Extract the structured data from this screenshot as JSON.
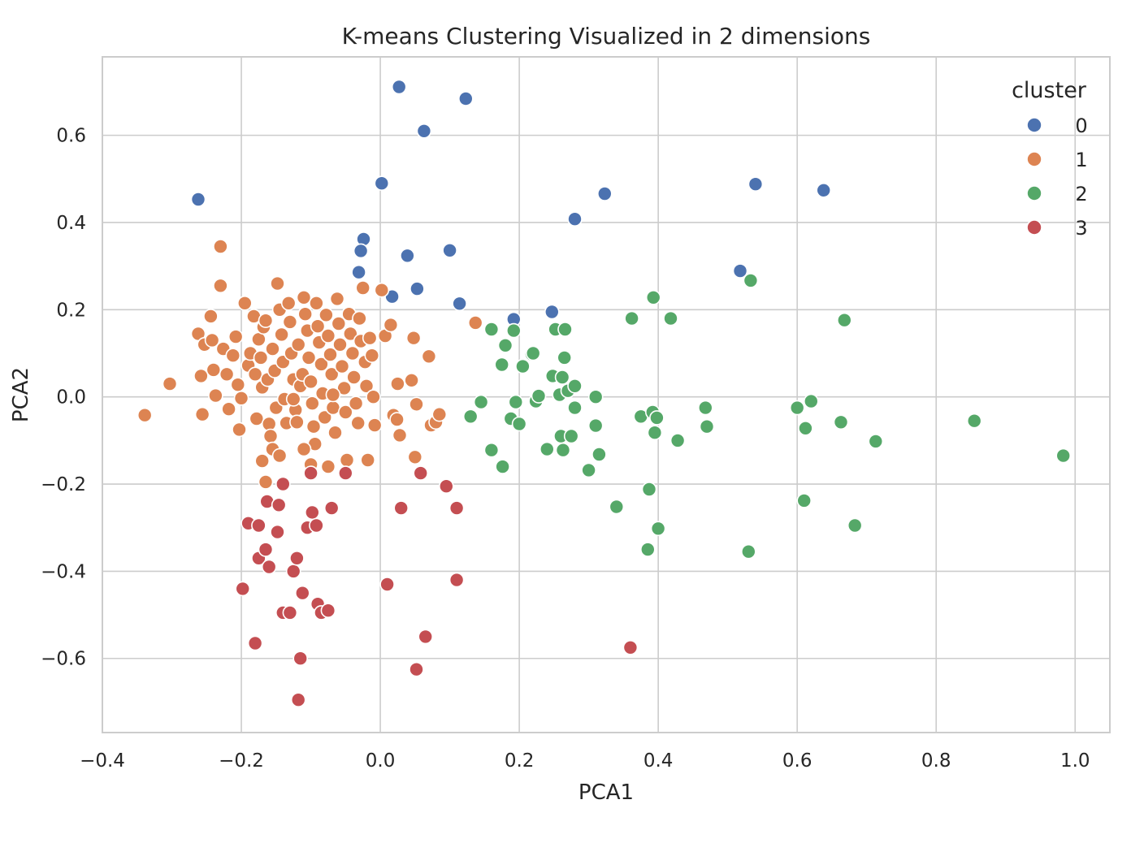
{
  "chart_data": {
    "type": "scatter",
    "title": "K-means Clustering Visualized in 2 dimensions",
    "xlabel": "PCA1",
    "ylabel": "PCA2",
    "xlim": [
      -0.4,
      1.05
    ],
    "ylim": [
      -0.77,
      0.78
    ],
    "xticks": [
      -0.4,
      -0.2,
      0.0,
      0.2,
      0.4,
      0.6,
      0.8,
      1.0
    ],
    "yticks": [
      -0.6,
      -0.4,
      -0.2,
      0.0,
      0.2,
      0.4,
      0.6
    ],
    "xtick_labels": [
      "−0.4",
      "−0.2",
      "0.0",
      "0.2",
      "0.4",
      "0.6",
      "0.8",
      "1.0"
    ],
    "ytick_labels": [
      "−0.6",
      "−0.4",
      "−0.2",
      "0.0",
      "0.2",
      "0.4",
      "0.6"
    ],
    "grid": true,
    "legend": {
      "title": "cluster",
      "placement": "top-right"
    },
    "series": [
      {
        "name": "0",
        "color": "#4c72b0",
        "points": [
          [
            -0.262,
            0.453
          ],
          [
            0.027,
            0.711
          ],
          [
            0.063,
            0.61
          ],
          [
            0.123,
            0.684
          ],
          [
            0.002,
            0.49
          ],
          [
            -0.024,
            0.362
          ],
          [
            -0.028,
            0.335
          ],
          [
            -0.031,
            0.286
          ],
          [
            0.039,
            0.324
          ],
          [
            0.053,
            0.248
          ],
          [
            0.017,
            0.23
          ],
          [
            0.1,
            0.336
          ],
          [
            0.114,
            0.214
          ],
          [
            0.192,
            0.178
          ],
          [
            0.247,
            0.195
          ],
          [
            0.28,
            0.408
          ],
          [
            0.323,
            0.466
          ],
          [
            0.518,
            0.289
          ],
          [
            0.54,
            0.488
          ],
          [
            0.638,
            0.474
          ]
        ]
      },
      {
        "name": "1",
        "color": "#dd8452",
        "points": [
          [
            -0.339,
            -0.042
          ],
          [
            -0.303,
            0.03
          ],
          [
            -0.262,
            0.145
          ],
          [
            -0.253,
            0.12
          ],
          [
            -0.258,
            0.048
          ],
          [
            -0.256,
            -0.04
          ],
          [
            -0.244,
            0.185
          ],
          [
            -0.242,
            0.13
          ],
          [
            -0.24,
            0.062
          ],
          [
            -0.237,
            0.003
          ],
          [
            -0.23,
            0.345
          ],
          [
            -0.23,
            0.255
          ],
          [
            -0.226,
            0.11
          ],
          [
            -0.221,
            0.052
          ],
          [
            -0.218,
            -0.028
          ],
          [
            -0.212,
            0.095
          ],
          [
            -0.208,
            0.138
          ],
          [
            -0.205,
            0.028
          ],
          [
            -0.203,
            -0.075
          ],
          [
            -0.2,
            -0.003
          ],
          [
            -0.195,
            0.215
          ],
          [
            -0.19,
            0.072
          ],
          [
            -0.187,
            0.1
          ],
          [
            -0.182,
            0.185
          ],
          [
            -0.18,
            0.052
          ],
          [
            -0.178,
            -0.05
          ],
          [
            -0.175,
            0.132
          ],
          [
            -0.172,
            0.09
          ],
          [
            -0.17,
            0.022
          ],
          [
            -0.168,
            0.16
          ],
          [
            -0.165,
            0.175
          ],
          [
            -0.162,
            0.04
          ],
          [
            -0.16,
            -0.062
          ],
          [
            -0.158,
            -0.09
          ],
          [
            -0.155,
            0.11
          ],
          [
            -0.152,
            0.06
          ],
          [
            -0.15,
            -0.025
          ],
          [
            -0.148,
            0.26
          ],
          [
            -0.145,
            0.2
          ],
          [
            -0.142,
            0.143
          ],
          [
            -0.14,
            0.08
          ],
          [
            -0.138,
            -0.005
          ],
          [
            -0.135,
            -0.06
          ],
          [
            -0.132,
            0.215
          ],
          [
            -0.13,
            0.172
          ],
          [
            -0.128,
            0.1
          ],
          [
            -0.125,
            0.04
          ],
          [
            -0.122,
            -0.03
          ],
          [
            -0.12,
            -0.058
          ],
          [
            -0.118,
            0.12
          ],
          [
            -0.115,
            0.025
          ],
          [
            -0.112,
            0.052
          ],
          [
            -0.11,
            0.228
          ],
          [
            -0.108,
            0.19
          ],
          [
            -0.105,
            0.152
          ],
          [
            -0.103,
            0.09
          ],
          [
            -0.1,
            0.035
          ],
          [
            -0.098,
            -0.015
          ],
          [
            -0.096,
            -0.068
          ],
          [
            -0.094,
            -0.108
          ],
          [
            -0.092,
            0.215
          ],
          [
            -0.09,
            0.162
          ],
          [
            -0.088,
            0.125
          ],
          [
            -0.085,
            0.075
          ],
          [
            -0.083,
            0.008
          ],
          [
            -0.08,
            -0.047
          ],
          [
            -0.078,
            0.188
          ],
          [
            -0.075,
            0.14
          ],
          [
            -0.072,
            0.097
          ],
          [
            -0.07,
            0.052
          ],
          [
            -0.068,
            -0.025
          ],
          [
            -0.065,
            -0.082
          ],
          [
            -0.062,
            0.225
          ],
          [
            -0.06,
            0.168
          ],
          [
            -0.058,
            0.12
          ],
          [
            -0.055,
            0.07
          ],
          [
            -0.052,
            0.02
          ],
          [
            -0.05,
            -0.035
          ],
          [
            -0.048,
            -0.145
          ],
          [
            -0.045,
            0.19
          ],
          [
            -0.043,
            0.145
          ],
          [
            -0.04,
            0.1
          ],
          [
            -0.038,
            0.045
          ],
          [
            -0.035,
            -0.015
          ],
          [
            -0.032,
            -0.06
          ],
          [
            -0.03,
            0.18
          ],
          [
            -0.028,
            0.128
          ],
          [
            -0.025,
            0.25
          ],
          [
            -0.022,
            0.08
          ],
          [
            -0.02,
            0.025
          ],
          [
            -0.018,
            -0.145
          ],
          [
            -0.015,
            0.135
          ],
          [
            -0.012,
            0.095
          ],
          [
            -0.01,
            0.0
          ],
          [
            -0.008,
            -0.065
          ],
          [
            0.002,
            0.245
          ],
          [
            0.007,
            0.14
          ],
          [
            0.015,
            0.165
          ],
          [
            0.019,
            -0.042
          ],
          [
            0.024,
            -0.052
          ],
          [
            0.025,
            0.03
          ],
          [
            0.028,
            -0.088
          ],
          [
            0.045,
            0.038
          ],
          [
            0.048,
            0.135
          ],
          [
            0.05,
            -0.138
          ],
          [
            0.052,
            -0.017
          ],
          [
            0.07,
            0.093
          ],
          [
            0.073,
            -0.065
          ],
          [
            0.08,
            -0.058
          ],
          [
            0.085,
            -0.04
          ],
          [
            0.137,
            0.17
          ],
          [
            -0.17,
            -0.147
          ],
          [
            -0.165,
            -0.195
          ],
          [
            -0.155,
            -0.12
          ],
          [
            -0.145,
            -0.135
          ],
          [
            -0.1,
            -0.155
          ],
          [
            -0.075,
            -0.16
          ],
          [
            -0.11,
            -0.12
          ],
          [
            -0.125,
            -0.005
          ],
          [
            -0.068,
            0.005
          ]
        ]
      },
      {
        "name": "2",
        "color": "#55a868",
        "points": [
          [
            0.13,
            -0.045
          ],
          [
            0.145,
            -0.012
          ],
          [
            0.16,
            0.155
          ],
          [
            0.16,
            -0.122
          ],
          [
            0.175,
            0.074
          ],
          [
            0.176,
            -0.16
          ],
          [
            0.18,
            0.118
          ],
          [
            0.188,
            -0.05
          ],
          [
            0.192,
            0.152
          ],
          [
            0.195,
            -0.012
          ],
          [
            0.2,
            -0.062
          ],
          [
            0.205,
            0.07
          ],
          [
            0.218,
            0.098
          ],
          [
            0.22,
            0.1
          ],
          [
            0.224,
            -0.01
          ],
          [
            0.228,
            0.002
          ],
          [
            0.24,
            -0.12
          ],
          [
            0.248,
            0.048
          ],
          [
            0.252,
            0.155
          ],
          [
            0.258,
            0.005
          ],
          [
            0.262,
            0.045
          ],
          [
            0.26,
            -0.09
          ],
          [
            0.263,
            -0.122
          ],
          [
            0.266,
            0.155
          ],
          [
            0.265,
            0.09
          ],
          [
            0.27,
            0.014
          ],
          [
            0.275,
            -0.09
          ],
          [
            0.28,
            0.025
          ],
          [
            0.28,
            -0.025
          ],
          [
            0.3,
            -0.168
          ],
          [
            0.31,
            0.0
          ],
          [
            0.31,
            -0.066
          ],
          [
            0.315,
            -0.132
          ],
          [
            0.34,
            -0.252
          ],
          [
            0.362,
            0.18
          ],
          [
            0.375,
            -0.045
          ],
          [
            0.385,
            -0.35
          ],
          [
            0.387,
            -0.212
          ],
          [
            0.392,
            -0.035
          ],
          [
            0.393,
            0.228
          ],
          [
            0.395,
            -0.082
          ],
          [
            0.398,
            -0.048
          ],
          [
            0.4,
            -0.302
          ],
          [
            0.418,
            0.18
          ],
          [
            0.428,
            -0.1
          ],
          [
            0.468,
            -0.025
          ],
          [
            0.47,
            -0.068
          ],
          [
            0.53,
            -0.355
          ],
          [
            0.533,
            0.267
          ],
          [
            0.6,
            -0.025
          ],
          [
            0.61,
            -0.238
          ],
          [
            0.612,
            -0.072
          ],
          [
            0.62,
            -0.01
          ],
          [
            0.663,
            -0.058
          ],
          [
            0.668,
            0.176
          ],
          [
            0.683,
            -0.295
          ],
          [
            0.713,
            -0.102
          ],
          [
            0.855,
            -0.055
          ],
          [
            0.983,
            -0.135
          ]
        ]
      },
      {
        "name": "3",
        "color": "#c44e52",
        "points": [
          [
            -0.198,
            -0.44
          ],
          [
            -0.19,
            -0.29
          ],
          [
            -0.18,
            -0.565
          ],
          [
            -0.175,
            -0.37
          ],
          [
            -0.175,
            -0.295
          ],
          [
            -0.165,
            -0.35
          ],
          [
            -0.163,
            -0.24
          ],
          [
            -0.16,
            -0.39
          ],
          [
            -0.148,
            -0.31
          ],
          [
            -0.146,
            -0.248
          ],
          [
            -0.14,
            -0.2
          ],
          [
            -0.14,
            -0.495
          ],
          [
            -0.13,
            -0.495
          ],
          [
            -0.125,
            -0.4
          ],
          [
            -0.12,
            -0.37
          ],
          [
            -0.118,
            -0.695
          ],
          [
            -0.115,
            -0.6
          ],
          [
            -0.112,
            -0.45
          ],
          [
            -0.105,
            -0.3
          ],
          [
            -0.1,
            -0.175
          ],
          [
            -0.098,
            -0.265
          ],
          [
            -0.092,
            -0.295
          ],
          [
            -0.09,
            -0.475
          ],
          [
            -0.085,
            -0.495
          ],
          [
            -0.075,
            -0.49
          ],
          [
            -0.07,
            -0.255
          ],
          [
            -0.05,
            -0.175
          ],
          [
            0.01,
            -0.43
          ],
          [
            0.03,
            -0.255
          ],
          [
            0.052,
            -0.625
          ],
          [
            0.058,
            -0.175
          ],
          [
            0.065,
            -0.55
          ],
          [
            0.095,
            -0.205
          ],
          [
            0.11,
            -0.255
          ],
          [
            0.11,
            -0.42
          ],
          [
            0.36,
            -0.575
          ]
        ]
      }
    ]
  }
}
